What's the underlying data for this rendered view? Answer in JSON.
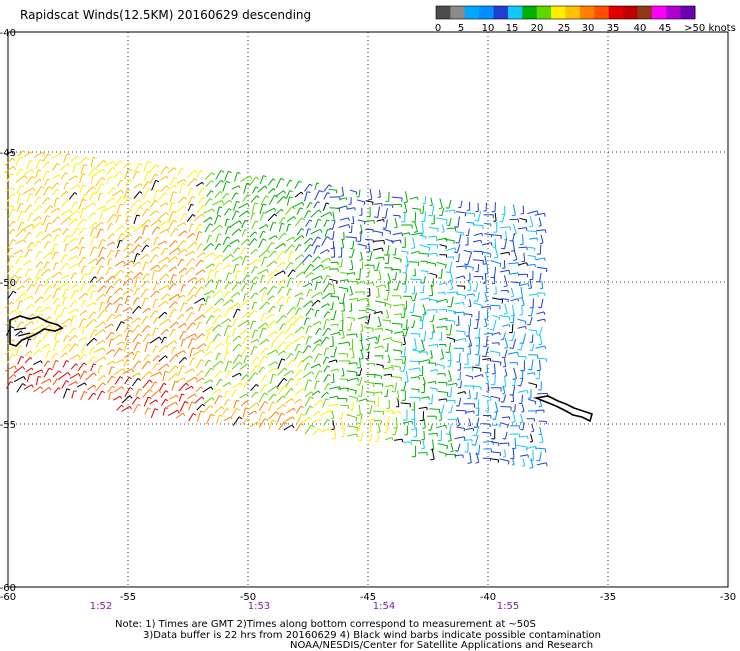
{
  "title": "Rapidscat Winds(12.5KM) 20160629 descending",
  "legend": {
    "colors": [
      "#4c4c4c",
      "#8c8c8c",
      "#00a8ff",
      "#0090ff",
      "#1f3fd0",
      "#12c8ff",
      "#00b000",
      "#5cd600",
      "#ffee00",
      "#ffc000",
      "#ff8000",
      "#ff5000",
      "#e00000",
      "#c00000",
      "#8c3a1a",
      "#ff00ff",
      "#b000d0",
      "#6a00b0"
    ],
    "labels": [
      "0",
      "5",
      "10",
      "15",
      "20",
      "25",
      "30",
      "35",
      "40",
      "45",
      ">50 knots"
    ]
  },
  "axes": {
    "x_ticks": [
      "-60",
      "-55",
      "-50",
      "-45",
      "-40",
      "-35",
      "-30"
    ],
    "y_ticks": [
      "-40",
      "-45",
      "-50",
      "-55",
      "-60"
    ]
  },
  "times": [
    "1:52",
    "1:53",
    "1:54",
    "1:55"
  ],
  "notes": [
    "Note: 1) Times are GMT 2)Times along bottom correspond to measurement at ~50S",
    "3)Data buffer is 22 hrs from 20160629 4) Black wind barbs indicate possible contamination",
    "NOAA/NESDIS/Center for Satellite Applications and Research"
  ]
}
